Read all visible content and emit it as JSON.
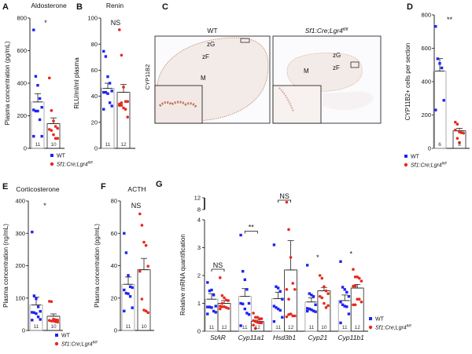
{
  "colors": {
    "wt": "#1f24f0",
    "ko": "#e8281c",
    "stain": "#b5563a"
  },
  "legend": {
    "wt": "WT",
    "ko_prefix": "Sf1:Cre;Lgr4",
    "ko_sup": "fl/fl"
  },
  "panel_c": {
    "label": "C",
    "stain_label": "CYP11B2",
    "wt_title": "WT",
    "ko_title_prefix": "Sf1:Cre;Lgr4",
    "ko_title_sup": "fl/fl",
    "zones": {
      "zg": "zG",
      "zf": "zF",
      "m": "M"
    }
  },
  "chart_data": [
    {
      "id": "A",
      "type": "scatter-bar",
      "title": "Aldosterone",
      "ylabel": "Plasma concentration (pg/mL)",
      "ylim": [
        0,
        800
      ],
      "yticks": [
        0,
        200,
        400,
        600,
        800
      ],
      "significance": "*",
      "groups": [
        {
          "name": "WT",
          "n": "11",
          "mean": 285,
          "sem": 50,
          "values": [
            727,
            442,
            387,
            306,
            252,
            236,
            229,
            229,
            176,
            74,
            74
          ]
        },
        {
          "name": "Sf1:Cre;Lgr4fl/fl",
          "n": "10",
          "mean": 152,
          "sem": 35,
          "values": [
            432,
            232,
            168,
            135,
            123,
            116,
            110,
            84,
            61,
            61
          ]
        }
      ]
    },
    {
      "id": "B",
      "type": "scatter-bar",
      "title": "Renin",
      "ylabel": "RLU/ml/ml plasma",
      "ylim": [
        0,
        100
      ],
      "yticks": [
        0,
        20,
        40,
        60,
        80,
        100
      ],
      "significance": "NS",
      "groups": [
        {
          "name": "WT",
          "n": "11",
          "mean": 46,
          "sem": 4,
          "values": [
            74.5,
            70.5,
            55,
            50,
            44,
            43,
            43,
            42,
            35,
            32.5,
            30
          ]
        },
        {
          "name": "Sf1:Cre;Lgr4fl/fl",
          "n": "12",
          "mean": 43,
          "sem": 6,
          "values": [
            91,
            71.5,
            47,
            36,
            36,
            34,
            33,
            31,
            30,
            24,
            33,
            35
          ]
        }
      ]
    },
    {
      "id": "D",
      "type": "scatter-bar",
      "title": "",
      "ylabel": "CYP11B2+ cells per section",
      "ylim": [
        0,
        800
      ],
      "yticks": [
        0,
        200,
        400,
        600,
        800
      ],
      "significance": "**",
      "groups": [
        {
          "name": "WT",
          "n": "6",
          "mean": 463,
          "sem": 75,
          "values": [
            731,
            537,
            509,
            482,
            288,
            230
          ]
        },
        {
          "name": "Sf1:Cre;Lgr4fl/fl",
          "n": "8",
          "mean": 105,
          "sem": 15,
          "values": [
            157,
            145,
            98,
            94,
            91,
            110,
            60,
            35
          ]
        }
      ]
    },
    {
      "id": "E",
      "type": "scatter-bar",
      "title": "Corticosterone",
      "ylabel": "Plasma concentration (ng/mL)",
      "ylim": [
        0,
        400
      ],
      "yticks": [
        0,
        100,
        200,
        300,
        400
      ],
      "significance": "*",
      "groups": [
        {
          "name": "WT",
          "n": "11",
          "mean": 79,
          "sem": 24,
          "values": [
            304,
            107,
            98,
            73,
            59,
            56,
            55,
            52,
            42,
            34,
            32
          ]
        },
        {
          "name": "Sf1:Cre;Lgr4fl/fl",
          "n": "10",
          "mean": 44,
          "sem": 7,
          "values": [
            90,
            89,
            35,
            33,
            32,
            31,
            29,
            29,
            27,
            26
          ]
        }
      ]
    },
    {
      "id": "F",
      "type": "scatter-bar",
      "title": "ACTH",
      "ylabel": "Plasma concentration (pg/mL)",
      "ylim": [
        0,
        80
      ],
      "yticks": [
        0,
        20,
        40,
        60,
        80
      ],
      "significance": "NS",
      "groups": [
        {
          "name": "WT",
          "n": "11",
          "mean": 28.5,
          "sem": 4.5,
          "values": [
            60,
            48,
            34,
            27,
            26.5,
            25,
            23,
            22.7,
            21,
            14,
            12
          ]
        },
        {
          "name": "Sf1:Cre;Lgr4fl/fl",
          "n": "10",
          "mean": 37.5,
          "sem": 7,
          "values": [
            72,
            65,
            54.5,
            52.5,
            39.7,
            36.5,
            19.4,
            12.6,
            12,
            11
          ]
        }
      ]
    },
    {
      "id": "G",
      "type": "scatter-bar",
      "title": "",
      "ylabel": "Relative mRNA quantification",
      "ylim": [
        0,
        12
      ],
      "axis_break": [
        4,
        8
      ],
      "yticks": [
        0,
        1,
        2,
        3,
        4,
        8,
        12
      ],
      "categories": [
        {
          "gene": "StAR",
          "significance": "NS",
          "groups": [
            {
              "name": "WT",
              "n": "11",
              "mean": 1.15,
              "sem": 0.2,
              "values": [
                1.75,
                1.45,
                1.48,
                1.3,
                0.9,
                0.87,
                0.87,
                0.85,
                0.72,
                0.68,
                0.62
              ]
            },
            {
              "name": "Sf1:Cre;Lgr4fl/fl",
              "n": "12",
              "mean": 1.0,
              "sem": 0.1,
              "values": [
                1.92,
                1.28,
                1.2,
                1.12,
                1.1,
                0.9,
                0.88,
                0.88,
                0.85,
                0.82,
                0.8,
                1.0
              ]
            }
          ]
        },
        {
          "gene": "Cyp11a1",
          "significance": "**",
          "groups": [
            {
              "name": "WT",
              "n": "11",
              "mean": 1.25,
              "sem": 0.28,
              "values": [
                3.45,
                2.15,
                1.85,
                1.5,
                1.0,
                1.0,
                0.98,
                0.8,
                0.65,
                0.6,
                0.2
              ]
            },
            {
              "name": "Sf1:Cre;Lgr4fl/fl",
              "n": "12",
              "mean": 0.35,
              "sem": 0.05,
              "values": [
                0.65,
                0.5,
                0.5,
                0.45,
                0.45,
                0.38,
                0.35,
                0.32,
                0.3,
                0.3,
                0.22,
                0.1
              ]
            }
          ]
        },
        {
          "gene": "Hsd3b1",
          "significance": "NS",
          "groups": [
            {
              "name": "WT",
              "n": "11",
              "mean": 1.17,
              "sem": 0.23,
              "values": [
                3.1,
                1.6,
                1.55,
                1.43,
                1.15,
                0.9,
                0.85,
                0.8,
                0.75,
                0.5,
                0.35
              ]
            },
            {
              "name": "Sf1:Cre;Lgr4fl/fl",
              "n": "12",
              "mean": 2.2,
              "sem": 1.05,
              "values": [
                10.5,
                3.65,
                2.65,
                1.72,
                1.5,
                1.5,
                1.15,
                0.62,
                0.55,
                0.55,
                0.52,
                0.6
              ]
            }
          ]
        },
        {
          "gene": "Cyp21",
          "significance": "*",
          "groups": [
            {
              "name": "WT",
              "n": "11",
              "mean": 1.05,
              "sem": 0.15,
              "values": [
                2.37,
                1.35,
                1.3,
                1.25,
                0.95,
                0.82,
                0.8,
                0.77,
                0.73,
                0.7,
                0.72
              ]
            },
            {
              "name": "Sf1:Cre;Lgr4fl/fl",
              "n": "10",
              "mean": 1.45,
              "sem": 0.12,
              "values": [
                2.0,
                1.9,
                1.6,
                1.45,
                1.35,
                1.25,
                1.2,
                1.0,
                0.85,
                0.92
              ]
            }
          ]
        },
        {
          "gene": "Cyp11b1",
          "significance": "*",
          "groups": [
            {
              "name": "WT",
              "n": "11",
              "mean": 1.1,
              "sem": 0.2,
              "values": [
                2.5,
                1.58,
                1.5,
                1.4,
                1.25,
                1.05,
                0.95,
                0.9,
                0.88,
                0.62,
                0.3
              ]
            },
            {
              "name": "Sf1:Cre;Lgr4fl/fl",
              "n": "12",
              "mean": 1.55,
              "sem": 0.13,
              "values": [
                2.22,
                1.95,
                1.95,
                1.9,
                1.8,
                1.62,
                1.62,
                1.15,
                1.15,
                1.05,
                0.95,
                0.95
              ]
            }
          ]
        }
      ]
    }
  ]
}
